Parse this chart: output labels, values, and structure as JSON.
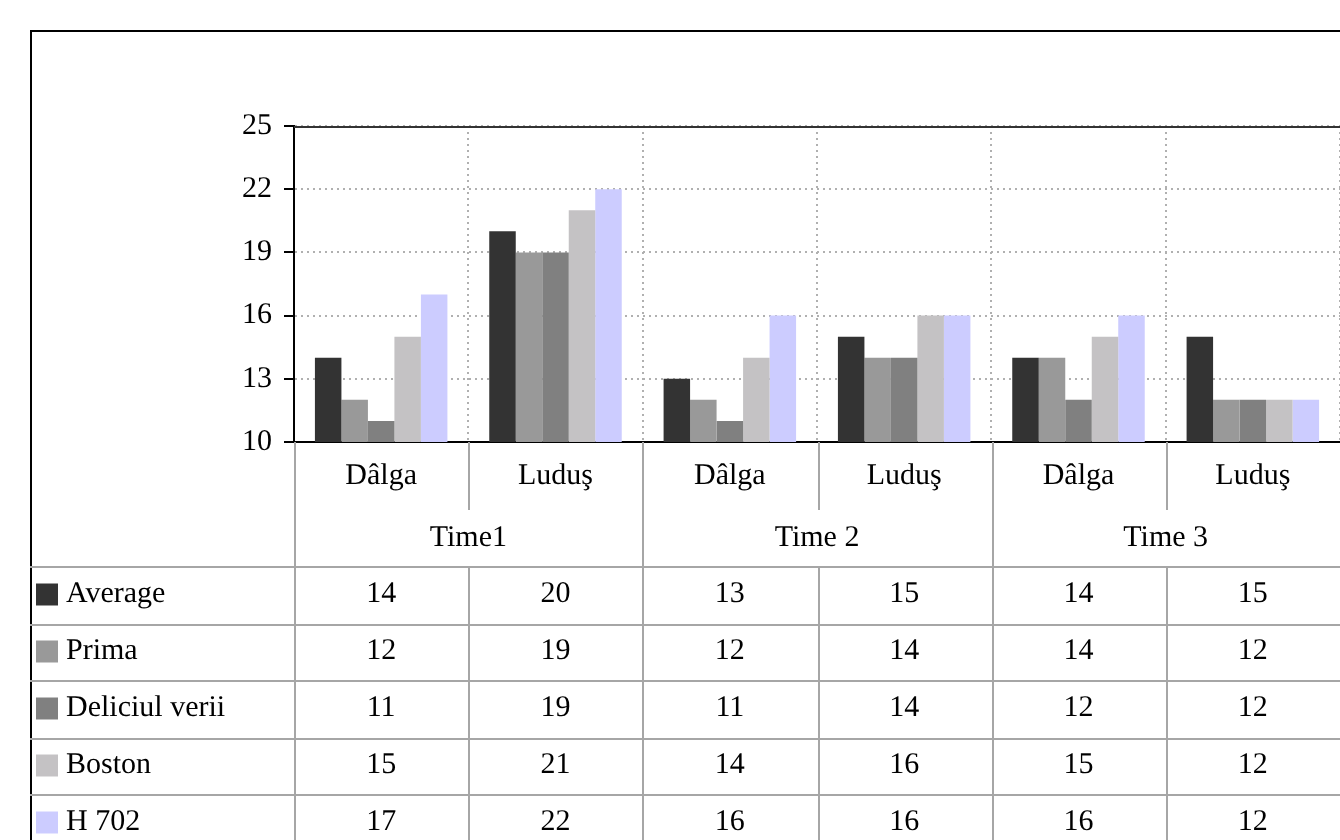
{
  "chart_data": {
    "type": "bar",
    "categories": [
      "Dâlga",
      "Luduş",
      "Dâlga",
      "Luduş",
      "Dâlga",
      "Luduş"
    ],
    "annotations": [
      "Time1",
      "Time 2",
      "Time 3"
    ],
    "series": [
      {
        "name": "Average",
        "color": "#333333",
        "values": [
          14,
          20,
          13,
          15,
          14,
          15
        ]
      },
      {
        "name": "Prima",
        "color": "#999999",
        "values": [
          12,
          19,
          12,
          14,
          14,
          12
        ]
      },
      {
        "name": "Deliciul verii",
        "color": "#808080",
        "values": [
          11,
          19,
          11,
          14,
          12,
          12
        ]
      },
      {
        "name": "Boston",
        "color": "#c4c2c4",
        "values": [
          15,
          21,
          14,
          16,
          15,
          12
        ]
      },
      {
        "name": "H 702",
        "color": "#ccccff",
        "values": [
          17,
          22,
          16,
          16,
          16,
          12
        ]
      }
    ],
    "ylim": [
      10,
      25
    ],
    "yticks": [
      10,
      13,
      16,
      19,
      22,
      25
    ],
    "grid": true,
    "data_labels": true,
    "legend": "bottom"
  }
}
